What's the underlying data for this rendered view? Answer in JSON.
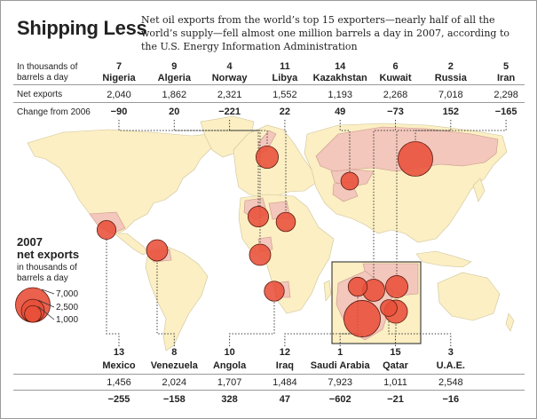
{
  "title": "Shipping Less",
  "subtitle": "Net oil exports from the world’s top 15 exporters—nearly half of all the world’s supply—fell almost one million barrels a day in 2007, according to the U.S. Energy Information Administration",
  "row_labels": {
    "units": "In thousands of barrels a day",
    "net_exports": "Net exports",
    "change": "Change from 2006"
  },
  "chart_data": {
    "type": "bubble-map",
    "title": "Shipping Less",
    "unit": "thousands of barrels a day",
    "countries": [
      {
        "rank": "7",
        "name": "Nigeria",
        "net_exports": "2,040",
        "change": "−90",
        "value": 2040,
        "lon": 8,
        "lat": 9,
        "position": "top"
      },
      {
        "rank": "9",
        "name": "Algeria",
        "net_exports": "1,862",
        "change": "20",
        "value": 1862,
        "lon": 3,
        "lat": 28,
        "position": "top"
      },
      {
        "rank": "4",
        "name": "Norway",
        "net_exports": "2,321",
        "change": "−221",
        "value": 2321,
        "lon": 9,
        "lat": 61,
        "position": "top"
      },
      {
        "rank": "11",
        "name": "Libya",
        "net_exports": "1,552",
        "change": "22",
        "value": 1552,
        "lon": 17,
        "lat": 27,
        "position": "top"
      },
      {
        "rank": "14",
        "name": "Kazakhstan",
        "net_exports": "1,193",
        "change": "49",
        "value": 1193,
        "lon": 67,
        "lat": 48,
        "position": "top"
      },
      {
        "rank": "6",
        "name": "Kuwait",
        "net_exports": "2,268",
        "change": "−73",
        "value": 2268,
        "lon": 47.5,
        "lat": 29.3,
        "position": "top"
      },
      {
        "rank": "2",
        "name": "Russia",
        "net_exports": "7,018",
        "change": "152",
        "value": 7018,
        "lon": 100,
        "lat": 60,
        "position": "top"
      },
      {
        "rank": "5",
        "name": "Iran",
        "net_exports": "2,298",
        "change": "−165",
        "value": 2298,
        "lon": 53,
        "lat": 32,
        "position": "top"
      },
      {
        "rank": "13",
        "name": "Mexico",
        "net_exports": "1,456",
        "change": "−255",
        "value": 1456,
        "lon": -102,
        "lat": 23,
        "position": "bottom"
      },
      {
        "rank": "8",
        "name": "Venezuela",
        "net_exports": "2,024",
        "change": "−158",
        "value": 2024,
        "lon": -66,
        "lat": 7,
        "position": "bottom"
      },
      {
        "rank": "10",
        "name": "Angola",
        "net_exports": "1,707",
        "change": "328",
        "value": 1707,
        "lon": 18,
        "lat": -12,
        "position": "bottom"
      },
      {
        "rank": "12",
        "name": "Iraq",
        "net_exports": "1,484",
        "change": "47",
        "value": 1484,
        "lon": 44,
        "lat": 33,
        "position": "bottom"
      },
      {
        "rank": "1",
        "name": "Saudi Arabia",
        "net_exports": "7,923",
        "change": "−602",
        "value": 7923,
        "lon": 45,
        "lat": 24,
        "position": "bottom"
      },
      {
        "rank": "15",
        "name": "Qatar",
        "net_exports": "1,011",
        "change": "−21",
        "value": 1011,
        "lon": 51.2,
        "lat": 25.3,
        "position": "bottom"
      },
      {
        "rank": "3",
        "name": "U.A.E.",
        "net_exports": "2,548",
        "change": "−16",
        "value": 2548,
        "lon": 54,
        "lat": 24,
        "position": "bottom"
      }
    ],
    "legend": {
      "title": "2007 net exports",
      "subtitle": "in thousands of barrels a day",
      "values": [
        7000,
        2500,
        1000
      ],
      "labels": [
        "7,000",
        "2,500",
        "1,000"
      ]
    }
  },
  "colors": {
    "exporter_fill": "#f3c7bb",
    "land": "#fbefc3",
    "bubble": "#e8503a",
    "bubble_stroke": "#5a1a10",
    "leader": "#333333"
  }
}
